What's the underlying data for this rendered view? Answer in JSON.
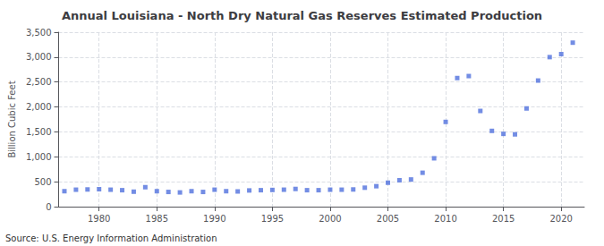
{
  "chart_data": {
    "type": "scatter",
    "title": "Annual Louisiana - North Dry Natural Gas Reserves Estimated Production",
    "ylabel": "Billion Cubic Feet",
    "annotations": [
      "Source: U.S. Energy Information Administration"
    ],
    "x": [
      1977,
      1978,
      1979,
      1980,
      1981,
      1982,
      1983,
      1984,
      1985,
      1986,
      1987,
      1988,
      1989,
      1990,
      1991,
      1992,
      1993,
      1994,
      1995,
      1996,
      1997,
      1998,
      1999,
      2000,
      2001,
      2002,
      2003,
      2004,
      2005,
      2006,
      2007,
      2008,
      2009,
      2010,
      2011,
      2012,
      2013,
      2014,
      2015,
      2016,
      2017,
      2018,
      2019,
      2020,
      2021
    ],
    "values": [
      310,
      340,
      345,
      350,
      340,
      330,
      300,
      390,
      310,
      295,
      285,
      310,
      295,
      340,
      310,
      305,
      325,
      330,
      335,
      340,
      355,
      330,
      330,
      340,
      340,
      345,
      380,
      410,
      480,
      530,
      545,
      680,
      970,
      1700,
      2580,
      2620,
      1920,
      1520,
      1460,
      1450,
      1970,
      2530,
      3000,
      3060,
      3290
    ],
    "marker": "square",
    "xlim": [
      1976.5,
      2022
    ],
    "xticks": [
      1980,
      1985,
      1990,
      1995,
      2000,
      2005,
      2010,
      2015,
      2020
    ],
    "ylim": [
      0,
      3500
    ],
    "yticks": [
      0,
      500,
      {
        "value": 1000,
        "label": "1,000"
      },
      {
        "value": 1500,
        "label": "1,500"
      },
      {
        "value": 2000,
        "label": "2,000"
      },
      {
        "value": 2500,
        "label": "2,500"
      },
      {
        "value": 3000,
        "label": "3,000"
      },
      {
        "value": 3500,
        "label": "3,500"
      }
    ],
    "grid": true
  }
}
